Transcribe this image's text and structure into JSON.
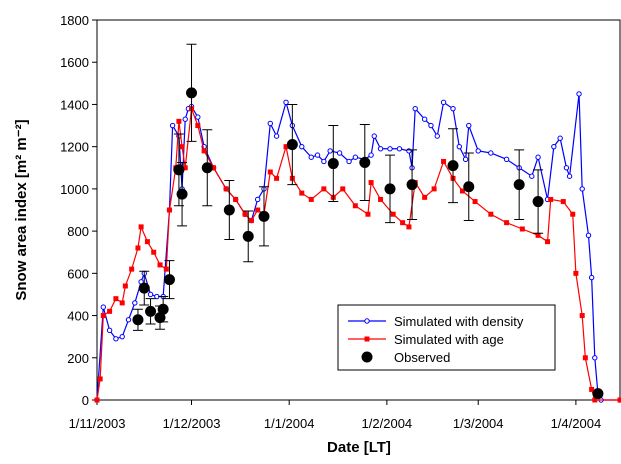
{
  "chart_data": {
    "type": "line",
    "xlabel": "Date [LT]",
    "ylabel": "Snow area index [m² m⁻²]",
    "xlim": [
      "2003-11-01",
      "2004-04-15"
    ],
    "xticks": [
      {
        "value": "2003-11-01",
        "label": "1/11/2003"
      },
      {
        "value": "2003-12-01",
        "label": "1/12/2003"
      },
      {
        "value": "2004-01-01",
        "label": "1/1/2004"
      },
      {
        "value": "2004-02-01",
        "label": "1/2/2004"
      },
      {
        "value": "2004-03-01",
        "label": "1/3/2004"
      },
      {
        "value": "2004-04-01",
        "label": "1/4/2004"
      }
    ],
    "ylim": [
      0,
      1800
    ],
    "yticks": [
      0,
      200,
      400,
      600,
      800,
      1000,
      1200,
      1400,
      1600,
      1800
    ],
    "legend": "lower-center",
    "series": [
      {
        "name": "Simulated with density",
        "color": "#0000ff",
        "marker": "circle-open",
        "line": true,
        "x": [
          "2003-11-01",
          "2003-11-03",
          "2003-11-05",
          "2003-11-07",
          "2003-11-09",
          "2003-11-11",
          "2003-11-13",
          "2003-11-15",
          "2003-11-16",
          "2003-11-18",
          "2003-11-20",
          "2003-11-22",
          "2003-11-24",
          "2003-11-25",
          "2003-11-27",
          "2003-11-28",
          "2003-11-29",
          "2003-11-30",
          "2003-12-01",
          "2003-12-03",
          "2003-12-05",
          "2003-12-08",
          "2003-12-12",
          "2003-12-15",
          "2003-12-18",
          "2003-12-20",
          "2003-12-22",
          "2003-12-24",
          "2003-12-26",
          "2003-12-28",
          "2003-12-31",
          "2004-01-02",
          "2004-01-05",
          "2004-01-08",
          "2004-01-10",
          "2004-01-12",
          "2004-01-14",
          "2004-01-17",
          "2004-01-20",
          "2004-01-22",
          "2004-01-25",
          "2004-01-27",
          "2004-01-28",
          "2004-01-30",
          "2004-02-02",
          "2004-02-05",
          "2004-02-08",
          "2004-02-09",
          "2004-02-10",
          "2004-02-13",
          "2004-02-15",
          "2004-02-17",
          "2004-02-19",
          "2004-02-22",
          "2004-02-24",
          "2004-02-26",
          "2004-02-27",
          "2004-03-01",
          "2004-03-05",
          "2004-03-10",
          "2004-03-14",
          "2004-03-18",
          "2004-03-20",
          "2004-03-23",
          "2004-03-25",
          "2004-03-27",
          "2004-03-29",
          "2004-03-30",
          "2004-04-02",
          "2004-04-03",
          "2004-04-05",
          "2004-04-06",
          "2004-04-07",
          "2004-04-08",
          "2004-04-09",
          "2004-04-15"
        ],
        "values": [
          0,
          440,
          330,
          290,
          300,
          380,
          460,
          560,
          600,
          500,
          490,
          490,
          900,
          1300,
          1250,
          1000,
          1330,
          1380,
          1390,
          1340,
          1200,
          1100,
          1000,
          950,
          880,
          850,
          950,
          1000,
          1310,
          1250,
          1410,
          1300,
          1200,
          1150,
          1160,
          1130,
          1180,
          1170,
          1130,
          1150,
          1140,
          1160,
          1250,
          1190,
          1190,
          1190,
          1180,
          1100,
          1380,
          1330,
          1300,
          1250,
          1410,
          1380,
          1200,
          1140,
          1300,
          1180,
          1170,
          1140,
          1100,
          1060,
          1150,
          950,
          1200,
          1240,
          1100,
          1060,
          1450,
          1000,
          780,
          580,
          200,
          30,
          0,
          0
        ]
      },
      {
        "name": "Simulated with age",
        "color": "#ff0000",
        "marker": "square",
        "line": true,
        "x": [
          "2003-11-01",
          "2003-11-02",
          "2003-11-03",
          "2003-11-05",
          "2003-11-07",
          "2003-11-09",
          "2003-11-10",
          "2003-11-12",
          "2003-11-14",
          "2003-11-15",
          "2003-11-17",
          "2003-11-19",
          "2003-11-21",
          "2003-11-23",
          "2003-11-24",
          "2003-11-26",
          "2003-11-27",
          "2003-11-28",
          "2003-11-29",
          "2003-12-01",
          "2003-12-03",
          "2003-12-05",
          "2003-12-08",
          "2003-12-12",
          "2003-12-15",
          "2003-12-18",
          "2003-12-20",
          "2003-12-22",
          "2003-12-24",
          "2003-12-26",
          "2003-12-28",
          "2003-12-31",
          "2004-01-02",
          "2004-01-05",
          "2004-01-08",
          "2004-01-12",
          "2004-01-15",
          "2004-01-18",
          "2004-01-22",
          "2004-01-26",
          "2004-01-27",
          "2004-01-30",
          "2004-02-03",
          "2004-02-06",
          "2004-02-08",
          "2004-02-10",
          "2004-02-13",
          "2004-02-16",
          "2004-02-19",
          "2004-02-22",
          "2004-02-25",
          "2004-02-29",
          "2004-03-05",
          "2004-03-10",
          "2004-03-15",
          "2004-03-20",
          "2004-03-23",
          "2004-03-24",
          "2004-03-28",
          "2004-03-31",
          "2004-04-01",
          "2004-04-03",
          "2004-04-04",
          "2004-04-06",
          "2004-04-07",
          "2004-04-15"
        ],
        "values": [
          0,
          100,
          400,
          420,
          480,
          460,
          540,
          620,
          720,
          820,
          750,
          700,
          640,
          620,
          900,
          1100,
          1320,
          1200,
          1100,
          1380,
          1300,
          1180,
          1100,
          1000,
          950,
          880,
          850,
          900,
          880,
          1080,
          1050,
          1200,
          1050,
          980,
          950,
          1000,
          960,
          1000,
          920,
          880,
          1030,
          950,
          880,
          840,
          820,
          1030,
          960,
          1000,
          1130,
          1050,
          990,
          940,
          880,
          840,
          810,
          780,
          750,
          950,
          940,
          880,
          600,
          400,
          200,
          50,
          0,
          0
        ]
      },
      {
        "name": "Observed",
        "color": "#000000",
        "marker": "circle",
        "line": false,
        "x": [
          "2003-11-14",
          "2003-11-16",
          "2003-11-18",
          "2003-11-21",
          "2003-11-22",
          "2003-11-24",
          "2003-11-27",
          "2003-11-28",
          "2003-12-01",
          "2003-12-06",
          "2003-12-13",
          "2003-12-19",
          "2003-12-24",
          "2004-01-02",
          "2004-01-15",
          "2004-01-25",
          "2004-02-02",
          "2004-02-09",
          "2004-02-22",
          "2004-02-27",
          "2004-03-14",
          "2004-03-20",
          "2004-04-08"
        ],
        "values": [
          380,
          530,
          420,
          390,
          430,
          570,
          1090,
          975,
          1455,
          1100,
          900,
          775,
          870,
          1210,
          1120,
          1125,
          1000,
          1020,
          1110,
          1010,
          1020,
          940,
          30
        ],
        "errors": [
          50,
          80,
          60,
          55,
          60,
          90,
          170,
          150,
          230,
          180,
          140,
          120,
          140,
          190,
          180,
          180,
          160,
          165,
          175,
          160,
          165,
          150,
          5
        ]
      }
    ]
  }
}
